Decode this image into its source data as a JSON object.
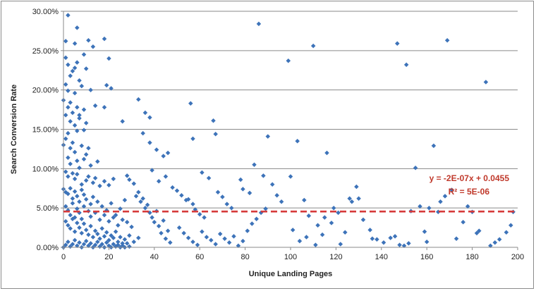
{
  "chart_data": {
    "type": "scatter",
    "title": "",
    "xlabel": "Unique Landing Pages",
    "ylabel": "Search Conversion Rate",
    "xlim": [
      0,
      200
    ],
    "ylim": [
      0,
      0.3
    ],
    "x_ticks": [
      "0",
      "20",
      "40",
      "60",
      "80",
      "100",
      "120",
      "140",
      "160",
      "180",
      "200"
    ],
    "y_ticks": [
      "0.00%",
      "5.00%",
      "10.00%",
      "15.00%",
      "20.00%",
      "25.00%",
      "30.00%"
    ],
    "grid": "horizontal",
    "colors": {
      "points": "#3d73b9",
      "trendline": "#d63a3a"
    },
    "trendline": {
      "slope": -2e-07,
      "intercept": 0.0455,
      "equation": "y = -2E-07x + 0.0455",
      "r_squared": "R² = 5E-06"
    },
    "series": [
      {
        "points": [
          [
            2,
            0.295
          ],
          [
            6,
            0.279
          ],
          [
            1,
            0.262
          ],
          [
            5,
            0.259
          ],
          [
            11,
            0.263
          ],
          [
            13,
            0.255
          ],
          [
            18,
            0.265
          ],
          [
            1,
            0.241
          ],
          [
            2,
            0.232
          ],
          [
            5,
            0.228
          ],
          [
            6,
            0.235
          ],
          [
            9,
            0.245
          ],
          [
            20,
            0.24
          ],
          [
            3,
            0.218
          ],
          [
            4,
            0.224
          ],
          [
            7,
            0.212
          ],
          [
            10,
            0.227
          ],
          [
            12,
            0.2
          ],
          [
            1,
            0.207
          ],
          [
            2,
            0.199
          ],
          [
            5,
            0.196
          ],
          [
            8,
            0.205
          ],
          [
            19,
            0.206
          ],
          [
            21,
            0.202
          ],
          [
            0,
            0.187
          ],
          [
            2,
            0.178
          ],
          [
            3,
            0.184
          ],
          [
            6,
            0.178
          ],
          [
            7,
            0.168
          ],
          [
            9,
            0.175
          ],
          [
            14,
            0.18
          ],
          [
            18,
            0.178
          ],
          [
            1,
            0.168
          ],
          [
            3,
            0.16
          ],
          [
            4,
            0.171
          ],
          [
            5,
            0.155
          ],
          [
            7,
            0.164
          ],
          [
            9,
            0.149
          ],
          [
            10,
            0.158
          ],
          [
            2,
            0.145
          ],
          [
            6,
            0.148
          ],
          [
            0,
            0.13
          ],
          [
            1,
            0.138
          ],
          [
            3,
            0.126
          ],
          [
            4,
            0.133
          ],
          [
            5,
            0.121
          ],
          [
            8,
            0.129
          ],
          [
            11,
            0.126
          ],
          [
            2,
            0.114
          ],
          [
            3,
            0.106
          ],
          [
            6,
            0.11
          ],
          [
            7,
            0.101
          ],
          [
            9,
            0.112
          ],
          [
            10,
            0.118
          ],
          [
            12,
            0.104
          ],
          [
            15,
            0.109
          ],
          [
            1,
            0.096
          ],
          [
            2,
            0.09
          ],
          [
            4,
            0.094
          ],
          [
            5,
            0.087
          ],
          [
            6,
            0.093
          ],
          [
            8,
            0.08
          ],
          [
            10,
            0.085
          ],
          [
            11,
            0.09
          ],
          [
            13,
            0.082
          ],
          [
            14,
            0.088
          ],
          [
            16,
            0.078
          ],
          [
            18,
            0.084
          ],
          [
            20,
            0.079
          ],
          [
            22,
            0.087
          ],
          [
            0,
            0.074
          ],
          [
            1,
            0.07
          ],
          [
            2,
            0.068
          ],
          [
            3,
            0.075
          ],
          [
            4,
            0.062
          ],
          [
            5,
            0.071
          ],
          [
            6,
            0.065
          ],
          [
            7,
            0.058
          ],
          [
            8,
            0.073
          ],
          [
            9,
            0.067
          ],
          [
            10,
            0.061
          ],
          [
            12,
            0.055
          ],
          [
            13,
            0.064
          ],
          [
            15,
            0.058
          ],
          [
            17,
            0.052
          ],
          [
            19,
            0.047
          ],
          [
            21,
            0.056
          ],
          [
            23,
            0.041
          ],
          [
            25,
            0.049
          ],
          [
            27,
            0.06
          ],
          [
            1,
            0.052
          ],
          [
            2,
            0.047
          ],
          [
            3,
            0.041
          ],
          [
            4,
            0.056
          ],
          [
            5,
            0.038
          ],
          [
            6,
            0.049
          ],
          [
            7,
            0.044
          ],
          [
            8,
            0.036
          ],
          [
            9,
            0.052
          ],
          [
            11,
            0.046
          ],
          [
            12,
            0.039
          ],
          [
            14,
            0.044
          ],
          [
            16,
            0.035
          ],
          [
            18,
            0.041
          ],
          [
            20,
            0.033
          ],
          [
            22,
            0.038
          ],
          [
            24,
            0.028
          ],
          [
            26,
            0.035
          ],
          [
            28,
            0.032
          ],
          [
            30,
            0.026
          ],
          [
            1,
            0.033
          ],
          [
            2,
            0.028
          ],
          [
            3,
            0.024
          ],
          [
            4,
            0.036
          ],
          [
            5,
            0.02
          ],
          [
            6,
            0.031
          ],
          [
            7,
            0.025
          ],
          [
            8,
            0.018
          ],
          [
            9,
            0.03
          ],
          [
            10,
            0.022
          ],
          [
            11,
            0.016
          ],
          [
            12,
            0.027
          ],
          [
            13,
            0.013
          ],
          [
            14,
            0.021
          ],
          [
            15,
            0.017
          ],
          [
            16,
            0.011
          ],
          [
            17,
            0.024
          ],
          [
            18,
            0.014
          ],
          [
            19,
            0.019
          ],
          [
            20,
            0.009
          ],
          [
            21,
            0.015
          ],
          [
            22,
            0.012
          ],
          [
            23,
            0.02
          ],
          [
            24,
            0.007
          ],
          [
            25,
            0.013
          ],
          [
            26,
            0.005
          ],
          [
            27,
            0.01
          ],
          [
            29,
            0.015
          ],
          [
            31,
            0.007
          ],
          [
            33,
            0.012
          ],
          [
            0,
            0.0
          ],
          [
            1,
            0.003
          ],
          [
            2,
            0.007
          ],
          [
            3,
            0.001
          ],
          [
            4,
            0.004
          ],
          [
            5,
            0.009
          ],
          [
            6,
            0.002
          ],
          [
            7,
            0.006
          ],
          [
            8,
            0.0
          ],
          [
            9,
            0.004
          ],
          [
            10,
            0.008
          ],
          [
            11,
            0.002
          ],
          [
            12,
            0.005
          ],
          [
            13,
            0.0
          ],
          [
            14,
            0.003
          ],
          [
            15,
            0.007
          ],
          [
            16,
            0.001
          ],
          [
            17,
            0.004
          ],
          [
            18,
            0.0
          ],
          [
            19,
            0.006
          ],
          [
            20,
            0.002
          ],
          [
            21,
            0.0
          ],
          [
            22,
            0.004
          ],
          [
            23,
            0.001
          ],
          [
            24,
            0.003
          ],
          [
            25,
            0.0
          ],
          [
            26,
            0.002
          ],
          [
            27,
            0.0
          ],
          [
            28,
            0.005
          ],
          [
            29,
            0.001
          ],
          [
            26,
            0.16
          ],
          [
            28,
            0.091
          ],
          [
            29,
            0.086
          ],
          [
            31,
            0.081
          ],
          [
            32,
            0.065
          ],
          [
            33,
            0.07
          ],
          [
            34,
            0.058
          ],
          [
            35,
            0.062
          ],
          [
            36,
            0.05
          ],
          [
            37,
            0.054
          ],
          [
            38,
            0.044
          ],
          [
            39,
            0.038
          ],
          [
            40,
            0.032
          ],
          [
            41,
            0.046
          ],
          [
            42,
            0.027
          ],
          [
            43,
            0.018
          ],
          [
            44,
            0.034
          ],
          [
            45,
            0.011
          ],
          [
            46,
            0.021
          ],
          [
            47,
            0.006
          ],
          [
            33,
            0.188
          ],
          [
            36,
            0.171
          ],
          [
            38,
            0.165
          ],
          [
            35,
            0.145
          ],
          [
            38,
            0.133
          ],
          [
            41,
            0.124
          ],
          [
            44,
            0.116
          ],
          [
            46,
            0.12
          ],
          [
            39,
            0.098
          ],
          [
            42,
            0.084
          ],
          [
            45,
            0.09
          ],
          [
            48,
            0.076
          ],
          [
            50,
            0.072
          ],
          [
            52,
            0.066
          ],
          [
            54,
            0.06
          ],
          [
            55,
            0.061
          ],
          [
            57,
            0.055
          ],
          [
            58,
            0.048
          ],
          [
            60,
            0.042
          ],
          [
            62,
            0.038
          ],
          [
            56,
            0.183
          ],
          [
            57,
            0.138
          ],
          [
            66,
            0.161
          ],
          [
            67,
            0.144
          ],
          [
            61,
            0.095
          ],
          [
            64,
            0.088
          ],
          [
            68,
            0.07
          ],
          [
            70,
            0.064
          ],
          [
            72,
            0.055
          ],
          [
            74,
            0.05
          ],
          [
            51,
            0.025
          ],
          [
            53,
            0.018
          ],
          [
            55,
            0.012
          ],
          [
            57,
            0.007
          ],
          [
            59,
            0.003
          ],
          [
            61,
            0.02
          ],
          [
            63,
            0.013
          ],
          [
            65,
            0.009
          ],
          [
            67,
            0.004
          ],
          [
            69,
            0.017
          ],
          [
            71,
            0.011
          ],
          [
            73,
            0.006
          ],
          [
            75,
            0.014
          ],
          [
            77,
            0.002
          ],
          [
            79,
            0.008
          ],
          [
            81,
            0.021
          ],
          [
            83,
            0.03
          ],
          [
            85,
            0.036
          ],
          [
            87,
            0.044
          ],
          [
            89,
            0.049
          ],
          [
            78,
            0.086
          ],
          [
            79,
            0.074
          ],
          [
            82,
            0.069
          ],
          [
            84,
            0.105
          ],
          [
            86,
            0.284
          ],
          [
            88,
            0.091
          ],
          [
            90,
            0.141
          ],
          [
            92,
            0.08
          ],
          [
            94,
            0.066
          ],
          [
            96,
            0.058
          ],
          [
            99,
            0.237
          ],
          [
            100,
            0.09
          ],
          [
            103,
            0.135
          ],
          [
            106,
            0.06
          ],
          [
            108,
            0.04
          ],
          [
            110,
            0.256
          ],
          [
            112,
            0.028
          ],
          [
            114,
            0.016
          ],
          [
            116,
            0.12
          ],
          [
            118,
            0.031
          ],
          [
            101,
            0.022
          ],
          [
            104,
            0.008
          ],
          [
            107,
            0.013
          ],
          [
            111,
            0.003
          ],
          [
            115,
            0.038
          ],
          [
            119,
            0.05
          ],
          [
            121,
            0.044
          ],
          [
            124,
            0.019
          ],
          [
            127,
            0.058
          ],
          [
            129,
            0.077
          ],
          [
            130,
            0.062
          ],
          [
            132,
            0.035
          ],
          [
            135,
            0.022
          ],
          [
            138,
            0.01
          ],
          [
            141,
            0.006
          ],
          [
            144,
            0.012
          ],
          [
            146,
            0.014
          ],
          [
            148,
            0.003
          ],
          [
            150,
            0.002
          ],
          [
            147,
            0.259
          ],
          [
            151,
            0.232
          ],
          [
            153,
            0.046
          ],
          [
            155,
            0.101
          ],
          [
            157,
            0.052
          ],
          [
            159,
            0.02
          ],
          [
            161,
            0.05
          ],
          [
            163,
            0.129
          ],
          [
            165,
            0.045
          ],
          [
            166,
            0.058
          ],
          [
            169,
            0.263
          ],
          [
            168,
            0.065
          ],
          [
            171,
            0.073
          ],
          [
            173,
            0.011
          ],
          [
            176,
            0.032
          ],
          [
            178,
            0.052
          ],
          [
            180,
            0.045
          ],
          [
            182,
            0.018
          ],
          [
            183,
            0.021
          ],
          [
            186,
            0.21
          ],
          [
            188,
            0.002
          ],
          [
            190,
            0.006
          ],
          [
            192,
            0.01
          ],
          [
            195,
            0.019
          ],
          [
            197,
            0.028
          ],
          [
            198,
            0.045
          ],
          [
            160,
            0.007
          ],
          [
            152,
            0.005
          ],
          [
            136,
            0.011
          ],
          [
            122,
            0.004
          ],
          [
            126,
            0.062
          ]
        ]
      }
    ]
  }
}
